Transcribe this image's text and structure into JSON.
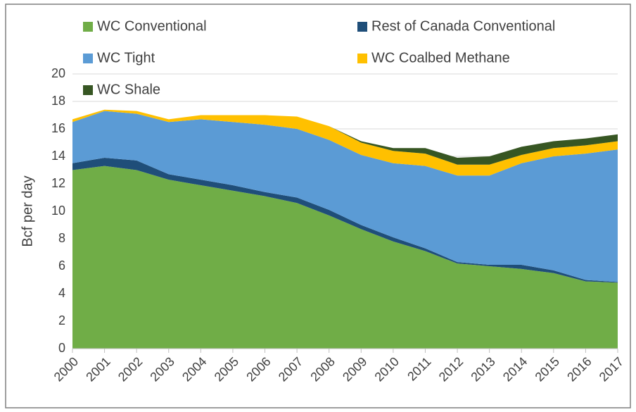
{
  "chart_data": {
    "type": "stacked_area",
    "y_label": "Bcf per day",
    "categories": [
      "2000",
      "2001",
      "2002",
      "2003",
      "2004",
      "2005",
      "2006",
      "2007",
      "2008",
      "2009",
      "2010",
      "2011",
      "2012",
      "2013",
      "2014",
      "2015",
      "2016",
      "2017"
    ],
    "series": [
      {
        "name": "WC Conventional",
        "color": "#70ad47",
        "values": [
          13.0,
          13.3,
          13.0,
          12.3,
          11.9,
          11.5,
          11.1,
          10.6,
          9.7,
          8.7,
          7.8,
          7.1,
          6.2,
          6.0,
          5.8,
          5.5,
          4.9,
          4.8
        ]
      },
      {
        "name": "Rest of Canada Conventional",
        "color": "#1f4e79",
        "values": [
          0.5,
          0.6,
          0.7,
          0.4,
          0.4,
          0.4,
          0.3,
          0.4,
          0.4,
          0.3,
          0.3,
          0.2,
          0.1,
          0.1,
          0.3,
          0.2,
          0.1,
          0.05
        ]
      },
      {
        "name": "WC Tight",
        "color": "#5b9bd5",
        "values": [
          3.0,
          3.4,
          3.4,
          3.8,
          4.4,
          4.6,
          4.9,
          5.0,
          5.1,
          5.1,
          5.4,
          6.0,
          6.3,
          6.5,
          7.4,
          8.3,
          9.2,
          9.65
        ]
      },
      {
        "name": "WC Coalbed Methane",
        "color": "#ffc000",
        "values": [
          0.2,
          0.1,
          0.2,
          0.2,
          0.3,
          0.5,
          0.7,
          0.9,
          1.0,
          0.9,
          0.9,
          0.9,
          0.8,
          0.8,
          0.6,
          0.6,
          0.6,
          0.6
        ]
      },
      {
        "name": "WC Shale",
        "color": "#375623",
        "values": [
          0,
          0,
          0,
          0,
          0,
          0,
          0,
          0,
          0,
          0.1,
          0.2,
          0.4,
          0.5,
          0.6,
          0.6,
          0.5,
          0.5,
          0.5
        ]
      }
    ],
    "ylim": [
      0,
      20
    ],
    "yticks": [
      0,
      2,
      4,
      6,
      8,
      10,
      12,
      14,
      16,
      18,
      20
    ],
    "grid": true
  }
}
